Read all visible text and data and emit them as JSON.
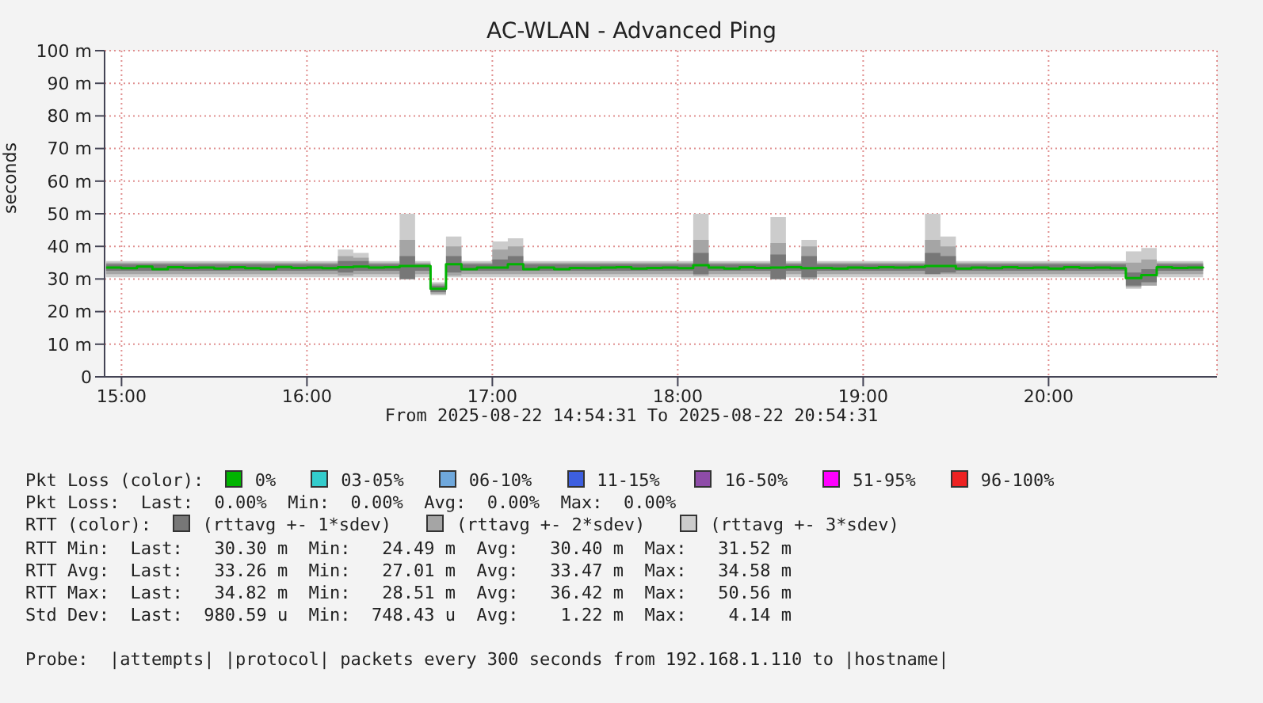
{
  "chart_data": {
    "type": "step",
    "title": "AC-WLAN - Advanced Ping",
    "xlabel": "From 2025-08-22 14:54:31 To 2025-08-22 20:54:31",
    "ylabel": "seconds",
    "x": [
      14.9167,
      15,
      15.0833,
      15.1667,
      15.25,
      15.3333,
      15.4167,
      15.5,
      15.5833,
      15.6667,
      15.75,
      15.8333,
      15.9167,
      16,
      16.0833,
      16.1667,
      16.25,
      16.3333,
      16.4167,
      16.5,
      16.5833,
      16.6667,
      16.75,
      16.8333,
      16.9167,
      17,
      17.0833,
      17.1667,
      17.25,
      17.3333,
      17.4167,
      17.5,
      17.5833,
      17.6667,
      17.75,
      17.8333,
      17.9167,
      18,
      18.0833,
      18.1667,
      18.25,
      18.3333,
      18.4167,
      18.5,
      18.5833,
      18.6667,
      18.75,
      18.8333,
      18.9167,
      19,
      19.0833,
      19.1667,
      19.25,
      19.3333,
      19.4167,
      19.5,
      19.5833,
      19.6667,
      19.75,
      19.8333,
      19.9167,
      20,
      20.0833,
      20.1667,
      20.25,
      20.3333,
      20.4167,
      20.5,
      20.5833,
      20.6667,
      20.75,
      20.8333
    ],
    "xlim": [
      14.9086,
      20.9086
    ],
    "xticks": [
      {
        "value": 15,
        "label": "15:00"
      },
      {
        "value": 16,
        "label": "16:00"
      },
      {
        "value": 17,
        "label": "17:00"
      },
      {
        "value": 18,
        "label": "18:00"
      },
      {
        "value": 19,
        "label": "19:00"
      },
      {
        "value": 20,
        "label": "20:00"
      }
    ],
    "ylim": [
      0,
      100
    ],
    "yticks": [
      0,
      {
        "value": 10,
        "label": "10 m"
      },
      {
        "value": 20,
        "label": "20 m"
      },
      {
        "value": 30,
        "label": "30 m"
      },
      {
        "value": 40,
        "label": "40 m"
      },
      {
        "value": 50,
        "label": "50 m"
      },
      {
        "value": 60,
        "label": "60 m"
      },
      {
        "value": 70,
        "label": "70 m"
      },
      {
        "value": 80,
        "label": "80 m"
      },
      {
        "value": 90,
        "label": "90 m"
      },
      {
        "value": 100,
        "label": "100 m"
      }
    ],
    "grid": true,
    "legend": "bottom",
    "series": [
      {
        "name": "(rttavg +- 3*sdev)",
        "color": "#cccccc",
        "values": [
          null,
          null,
          null,
          null,
          null,
          null,
          null,
          null,
          null,
          null,
          null,
          null,
          null,
          null,
          null,
          null,
          null,
          null,
          null,
          null,
          null,
          null,
          null,
          null,
          null,
          null,
          null,
          null,
          null,
          null,
          null,
          null,
          null,
          null,
          null,
          null,
          null,
          null,
          null,
          null,
          null,
          null,
          null,
          null,
          null,
          null,
          null,
          null,
          null,
          null,
          null,
          null,
          null,
          null,
          null,
          null,
          null,
          null,
          null,
          null,
          null,
          null,
          null,
          null,
          null,
          null,
          null,
          null,
          null,
          null,
          null,
          null
        ],
        "lower": [
          30.5,
          30.5,
          30.5,
          30.5,
          30.5,
          30.5,
          30.5,
          30.5,
          30.5,
          30.5,
          30.5,
          30.5,
          30.5,
          30.5,
          30.5,
          30.5,
          30.5,
          30.5,
          30.5,
          30,
          30.5,
          25,
          30.5,
          30.5,
          30.5,
          30.5,
          30.5,
          30.5,
          30.5,
          30.5,
          30.5,
          30.5,
          30.5,
          30.5,
          30.5,
          30.5,
          30.5,
          30.5,
          30.5,
          30.5,
          30.5,
          30.5,
          30.5,
          30,
          30.5,
          30,
          30.5,
          30.5,
          30.5,
          30.5,
          30.5,
          30.5,
          30.5,
          30.5,
          30.5,
          30.5,
          30.5,
          30.5,
          30.5,
          30.5,
          30.5,
          30.5,
          30.5,
          30.5,
          30.5,
          30.5,
          27,
          28,
          30.5,
          30.5,
          30.5,
          30.5
        ],
        "upper": [
          35.5,
          35.5,
          35.5,
          35.5,
          35.5,
          35.5,
          35.5,
          35.5,
          35.5,
          35.5,
          35.5,
          35.5,
          35.5,
          35.5,
          35.5,
          39,
          38,
          35.5,
          35.5,
          50,
          35.5,
          29,
          43,
          35.5,
          35.5,
          41.5,
          42.5,
          35.5,
          35.5,
          35.5,
          35.5,
          35.5,
          35.5,
          35.5,
          35.5,
          35.5,
          35.5,
          35.5,
          50,
          35.5,
          35.5,
          35.5,
          35.5,
          49,
          35.5,
          42,
          35.5,
          35.5,
          35.5,
          35.5,
          35.5,
          35.5,
          35.5,
          50,
          43,
          35.5,
          35.5,
          35.5,
          35.5,
          35.5,
          35.5,
          35.5,
          35.5,
          35.5,
          35.5,
          35.5,
          38.5,
          39.5,
          35.5,
          35.5,
          35.5,
          35.5
        ]
      },
      {
        "name": "(rttavg +- 2*sdev)",
        "color": "#a5a5a5",
        "values": [
          null,
          null,
          null,
          null,
          null,
          null,
          null,
          null,
          null,
          null,
          null,
          null,
          null,
          null,
          null,
          null,
          null,
          null,
          null,
          null,
          null,
          null,
          null,
          null,
          null,
          null,
          null,
          null,
          null,
          null,
          null,
          null,
          null,
          null,
          null,
          null,
          null,
          null,
          null,
          null,
          null,
          null,
          null,
          null,
          null,
          null,
          null,
          null,
          null,
          null,
          null,
          null,
          null,
          null,
          null,
          null,
          null,
          null,
          null,
          null,
          null,
          null,
          null,
          null,
          null,
          null,
          null,
          null,
          null,
          null,
          null,
          null
        ],
        "lower": [
          31.5,
          31.5,
          31.5,
          31.5,
          31.5,
          31.5,
          31.5,
          31.5,
          31.5,
          31.5,
          31.5,
          31.5,
          31.5,
          31.5,
          31.5,
          31,
          31.5,
          31.5,
          31.5,
          30,
          31.5,
          25.5,
          31,
          31.5,
          31.5,
          31.5,
          31.5,
          31.5,
          31.5,
          31.5,
          31.5,
          31.5,
          31.5,
          31.5,
          31.5,
          31.5,
          31.5,
          31.5,
          31,
          31.5,
          31.5,
          31.5,
          31.5,
          30,
          31.5,
          30,
          31.5,
          31.5,
          31.5,
          31.5,
          31.5,
          31.5,
          31.5,
          31.5,
          31.5,
          31.5,
          31.5,
          31.5,
          31.5,
          31.5,
          31.5,
          31.5,
          31.5,
          31.5,
          31.5,
          31.5,
          27.5,
          28,
          31.5,
          31.5,
          31.5,
          31.5
        ],
        "upper": [
          35,
          35,
          35,
          35,
          35,
          35,
          35,
          35,
          35,
          35,
          35,
          35,
          35,
          35,
          35,
          37,
          36.5,
          35,
          35,
          42,
          35,
          28.5,
          40,
          35,
          35,
          39,
          40,
          35,
          35,
          35,
          35,
          35,
          35,
          35,
          35,
          35,
          35,
          35,
          42,
          35,
          35,
          35,
          35,
          41,
          35,
          40,
          35,
          35,
          35,
          35,
          35,
          35,
          35,
          42,
          40,
          35,
          35,
          35,
          35,
          35,
          35,
          35,
          35,
          35,
          35,
          35,
          35,
          36,
          35,
          35,
          35,
          35
        ]
      },
      {
        "name": "(rttavg +- 1*sdev)",
        "color": "#777777",
        "values": [
          null,
          null,
          null,
          null,
          null,
          null,
          null,
          null,
          null,
          null,
          null,
          null,
          null,
          null,
          null,
          null,
          null,
          null,
          null,
          null,
          null,
          null,
          null,
          null,
          null,
          null,
          null,
          null,
          null,
          null,
          null,
          null,
          null,
          null,
          null,
          null,
          null,
          null,
          null,
          null,
          null,
          null,
          null,
          null,
          null,
          null,
          null,
          null,
          null,
          null,
          null,
          null,
          null,
          null,
          null,
          null,
          null,
          null,
          null,
          null,
          null,
          null,
          null,
          null,
          null,
          null,
          null,
          null,
          null,
          null,
          null,
          null
        ],
        "lower": [
          32.5,
          32.5,
          32.5,
          32.5,
          32.5,
          32.5,
          32.5,
          32.5,
          32.5,
          32.5,
          32.5,
          32.5,
          32.5,
          32.5,
          32.5,
          32,
          32.5,
          32.5,
          32.5,
          30,
          32.5,
          26,
          32,
          32.5,
          32.5,
          32.5,
          32.5,
          32.5,
          32.5,
          32.5,
          32.5,
          32.5,
          32.5,
          32.5,
          32.5,
          32.5,
          32.5,
          32.5,
          31.5,
          32.5,
          32.5,
          32.5,
          32.5,
          30,
          32.5,
          30.5,
          32.5,
          32.5,
          32.5,
          32.5,
          32.5,
          32.5,
          32.5,
          31.5,
          32,
          32.5,
          32.5,
          32.5,
          32.5,
          32.5,
          32.5,
          32.5,
          32.5,
          32.5,
          32.5,
          32.5,
          28,
          29,
          32.5,
          32.5,
          32.5,
          32.5
        ],
        "upper": [
          34.5,
          34.5,
          34.5,
          34.5,
          34.5,
          34.5,
          34.5,
          34.5,
          34.5,
          34.5,
          34.5,
          34.5,
          34.5,
          34.5,
          34.5,
          35.5,
          35.5,
          34.5,
          34.5,
          37,
          34.5,
          28,
          37,
          34.5,
          34.5,
          36,
          37,
          34.5,
          34.5,
          34.5,
          34.5,
          34.5,
          34.5,
          34.5,
          34.5,
          34.5,
          34.5,
          34.5,
          38,
          34.5,
          34.5,
          34.5,
          34.5,
          37.5,
          34.5,
          37,
          34.5,
          34.5,
          34.5,
          34.5,
          34.5,
          34.5,
          34.5,
          38,
          37,
          34.5,
          34.5,
          34.5,
          34.5,
          34.5,
          34.5,
          34.5,
          34.5,
          34.5,
          34.5,
          34.5,
          32,
          33,
          34.5,
          34.5,
          34.5,
          34.5
        ]
      },
      {
        "name": "0%",
        "color": "#00b400",
        "values": [
          33.5,
          33.3,
          33.8,
          33,
          33.6,
          33.4,
          33.5,
          33.2,
          33.6,
          33.3,
          33.1,
          33.7,
          33.4,
          33.5,
          33.3,
          33.6,
          33.8,
          33.5,
          33.6,
          34,
          34,
          27,
          34.5,
          33,
          33.5,
          33.5,
          34.5,
          33,
          33.5,
          33,
          33.4,
          33.3,
          33.5,
          33.6,
          33.2,
          33.4,
          33.5,
          33.3,
          34.2,
          33.5,
          33.2,
          33.6,
          33.4,
          33.5,
          33.6,
          33.3,
          33.4,
          33.2,
          33.5,
          33.4,
          33.6,
          33.5,
          33.7,
          34,
          34,
          33.2,
          33.5,
          33.3,
          33.6,
          33.4,
          33.5,
          33.2,
          33.6,
          33.4,
          33.5,
          33.3,
          30.3,
          31.2,
          33.6,
          33.4,
          33.5,
          33.3
        ]
      },
      {
        "name": "03-05%",
        "color": "#33cccc",
        "values": [
          null,
          null,
          null,
          null,
          null,
          null,
          null,
          null,
          null,
          null,
          null,
          null,
          null,
          null,
          null,
          null,
          null,
          null,
          null,
          null,
          null,
          null,
          null,
          null,
          null,
          null,
          null,
          null,
          null,
          null,
          null,
          null,
          null,
          null,
          null,
          null,
          null,
          null,
          null,
          null,
          null,
          null,
          null,
          null,
          null,
          null,
          null,
          null,
          null,
          null,
          null,
          null,
          null,
          null,
          null,
          null,
          null,
          null,
          null,
          null,
          null,
          null,
          null,
          null,
          null,
          null,
          null,
          null,
          null,
          null,
          null,
          null
        ]
      },
      {
        "name": "06-10%",
        "color": "#6fa8dc",
        "values": [
          null,
          null,
          null,
          null,
          null,
          null,
          null,
          null,
          null,
          null,
          null,
          null,
          null,
          null,
          null,
          null,
          null,
          null,
          null,
          null,
          null,
          null,
          null,
          null,
          null,
          null,
          null,
          null,
          null,
          null,
          null,
          null,
          null,
          null,
          null,
          null,
          null,
          null,
          null,
          null,
          null,
          null,
          null,
          null,
          null,
          null,
          null,
          null,
          null,
          null,
          null,
          null,
          null,
          null,
          null,
          null,
          null,
          null,
          null,
          null,
          null,
          null,
          null,
          null,
          null,
          null,
          null,
          null,
          null,
          null,
          null,
          null
        ]
      },
      {
        "name": "11-15%",
        "color": "#3d5fe0",
        "values": [
          null,
          null,
          null,
          null,
          null,
          null,
          null,
          null,
          null,
          null,
          null,
          null,
          null,
          null,
          null,
          null,
          null,
          null,
          null,
          null,
          null,
          null,
          null,
          null,
          null,
          null,
          null,
          null,
          null,
          null,
          null,
          null,
          null,
          null,
          null,
          null,
          null,
          null,
          null,
          null,
          null,
          null,
          null,
          null,
          null,
          null,
          null,
          null,
          null,
          null,
          null,
          null,
          null,
          null,
          null,
          null,
          null,
          null,
          null,
          null,
          null,
          null,
          null,
          null,
          null,
          null,
          null,
          null,
          null,
          null,
          null,
          null
        ]
      },
      {
        "name": "16-50%",
        "color": "#8e4ca8",
        "values": [
          null,
          null,
          null,
          null,
          null,
          null,
          null,
          null,
          null,
          null,
          null,
          null,
          null,
          null,
          null,
          null,
          null,
          null,
          null,
          null,
          null,
          null,
          null,
          null,
          null,
          null,
          null,
          null,
          null,
          null,
          null,
          null,
          null,
          null,
          null,
          null,
          null,
          null,
          null,
          null,
          null,
          null,
          null,
          null,
          null,
          null,
          null,
          null,
          null,
          null,
          null,
          null,
          null,
          null,
          null,
          null,
          null,
          null,
          null,
          null,
          null,
          null,
          null,
          null,
          null,
          null,
          null,
          null,
          null,
          null,
          null,
          null
        ]
      },
      {
        "name": "51-95%",
        "color": "#ff00ff",
        "values": [
          null,
          null,
          null,
          null,
          null,
          null,
          null,
          null,
          null,
          null,
          null,
          null,
          null,
          null,
          null,
          null,
          null,
          null,
          null,
          null,
          null,
          null,
          null,
          null,
          null,
          null,
          null,
          null,
          null,
          null,
          null,
          null,
          null,
          null,
          null,
          null,
          null,
          null,
          null,
          null,
          null,
          null,
          null,
          null,
          null,
          null,
          null,
          null,
          null,
          null,
          null,
          null,
          null,
          null,
          null,
          null,
          null,
          null,
          null,
          null,
          null,
          null,
          null,
          null,
          null,
          null,
          null,
          null,
          null,
          null,
          null,
          null
        ]
      },
      {
        "name": "96-100%",
        "color": "#ee2222",
        "values": [
          null,
          null,
          null,
          null,
          null,
          null,
          null,
          null,
          null,
          null,
          null,
          null,
          null,
          null,
          null,
          null,
          null,
          null,
          null,
          null,
          null,
          null,
          null,
          null,
          null,
          null,
          null,
          null,
          null,
          null,
          null,
          null,
          null,
          null,
          null,
          null,
          null,
          null,
          null,
          null,
          null,
          null,
          null,
          null,
          null,
          null,
          null,
          null,
          null,
          null,
          null,
          null,
          null,
          null,
          null,
          null,
          null,
          null,
          null,
          null,
          null,
          null,
          null,
          null,
          null,
          null,
          null,
          null,
          null,
          null,
          null,
          null
        ]
      }
    ],
    "annotations": [
      "Pkt Loss (color):",
      "Pkt Loss:  Last:  0.00%  Min:  0.00%  Avg:  0.00%  Max:  0.00%",
      "RTT (color):",
      "RTT Min:  Last:   30.30 m  Min:   24.49 m  Avg:   30.40 m  Max:   31.52 m",
      "RTT Avg:  Last:   33.26 m  Min:   27.01 m  Avg:   33.47 m  Max:   34.58 m",
      "RTT Max:  Last:   34.82 m  Min:   28.51 m  Avg:   36.42 m  Max:   50.56 m",
      "Std Dev:  Last:  980.59 u  Min:  748.43 u  Avg:    1.22 m  Max:    4.14 m",
      "Probe:  |attempts| |protocol| packets every 300 seconds from 192.168.1.110 to |hostname|"
    ]
  }
}
